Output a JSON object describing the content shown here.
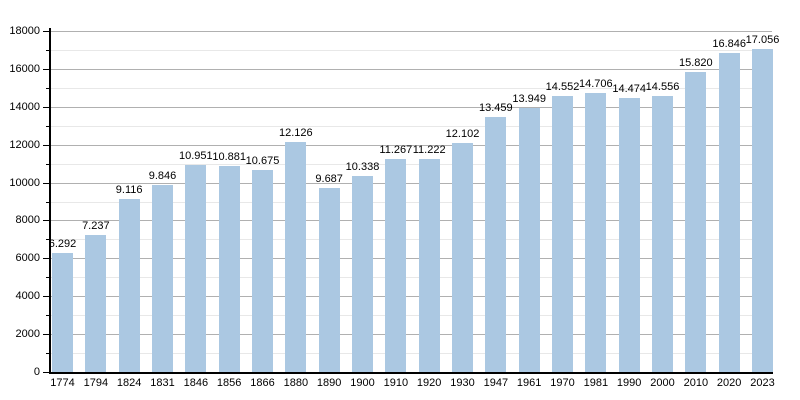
{
  "chart_data": {
    "type": "bar",
    "title": "",
    "xlabel": "",
    "ylabel": "",
    "categories": [
      "1774",
      "1794",
      "1824",
      "1831",
      "1846",
      "1856",
      "1866",
      "1880",
      "1890",
      "1900",
      "1910",
      "1920",
      "1930",
      "1947",
      "1961",
      "1970",
      "1981",
      "1990",
      "2000",
      "2010",
      "2020",
      "2023"
    ],
    "values": [
      6292,
      7237,
      9116,
      9846,
      10951,
      10881,
      10675,
      12126,
      9687,
      10338,
      11267,
      11222,
      12102,
      13459,
      13949,
      14552,
      14706,
      14474,
      14556,
      15820,
      16846,
      17056
    ],
    "value_labels": [
      "6.292",
      "7.237",
      "9.116",
      "9.846",
      "10.951",
      "10.881",
      "10.675",
      "12.126",
      "9.687",
      "10.338",
      "11.267",
      "11.222",
      "12.102",
      "13.459",
      "13.949",
      "14.552",
      "14.706",
      "14.474",
      "14.556",
      "15.820",
      "16.846",
      "17.056"
    ],
    "ylim": [
      0,
      18000
    ],
    "y_major_step": 2000,
    "y_minor_step": 1000,
    "y_tick_labels": [
      "0",
      "2000",
      "4000",
      "6000",
      "8000",
      "10000",
      "12000",
      "14000",
      "16000",
      "18000"
    ],
    "grid": true,
    "legend_position": "none",
    "colors": {
      "bar_fill": "#abc8e2",
      "major_grid": "#b0b0b0",
      "minor_grid": "#e8e8e8",
      "axis": "#000000",
      "text": "#000000",
      "background": "#ffffff"
    }
  }
}
